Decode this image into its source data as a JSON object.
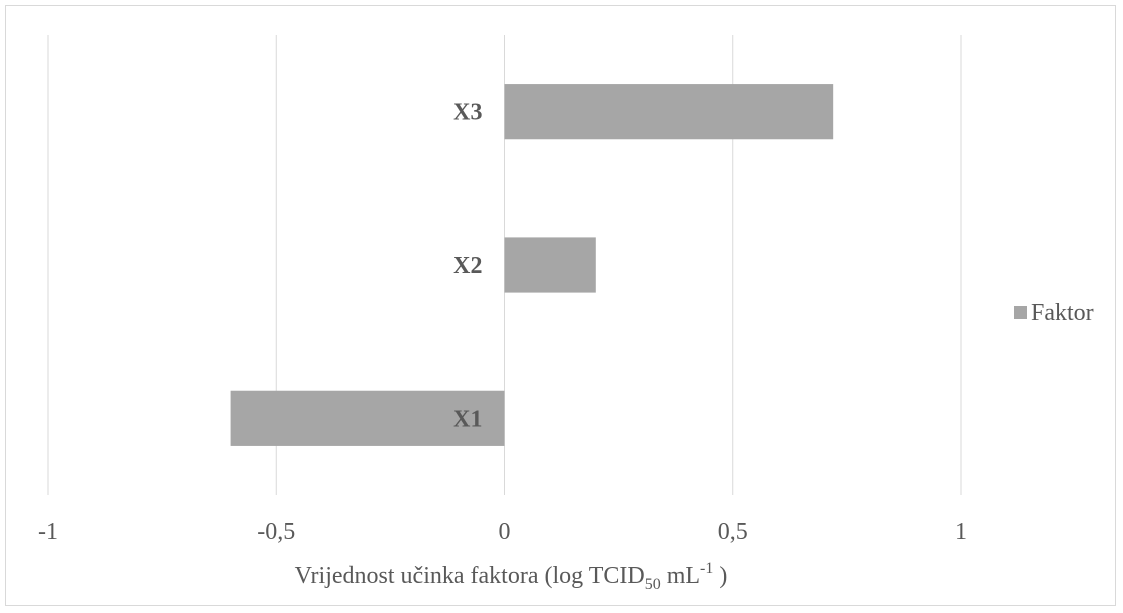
{
  "chart_data": {
    "type": "bar",
    "orientation": "horizontal",
    "categories": [
      "X1",
      "X2",
      "X3"
    ],
    "series": [
      {
        "name": "Faktor",
        "values": [
          -0.6,
          0.2,
          0.72
        ]
      }
    ],
    "xlim": [
      -1,
      1
    ],
    "xticks": [
      -1,
      -0.5,
      0,
      0.5,
      1
    ],
    "xtick_labels": [
      "-1",
      "-0,5",
      "0",
      "0,5",
      "1"
    ],
    "xlabel": {
      "prefix": "Vrijednost učinka faktora (log TCID",
      "subscript": "50",
      "middle": " mL",
      "superscript": "-1",
      "suffix": " )"
    },
    "grid": "vertical",
    "legend": "right",
    "colors": {
      "bar": "#a6a6a6",
      "grid": "#d9d9d9",
      "text": "#595959"
    }
  }
}
